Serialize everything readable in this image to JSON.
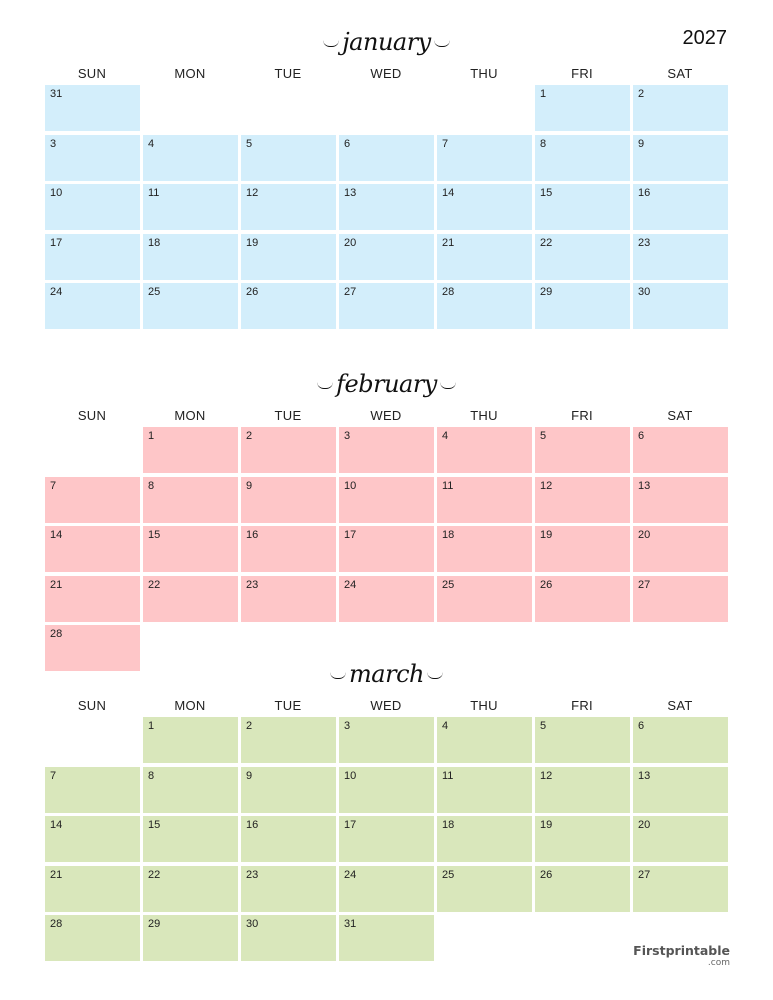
{
  "year": "2027",
  "weekdays": [
    "SUN",
    "MON",
    "TUE",
    "WED",
    "THU",
    "FRI",
    "SAT"
  ],
  "months": [
    {
      "name": "january",
      "color": "#d3eefb",
      "weeks": [
        [
          31,
          null,
          null,
          null,
          null,
          1,
          2
        ],
        [
          3,
          4,
          5,
          6,
          7,
          8,
          9
        ],
        [
          10,
          11,
          12,
          13,
          14,
          15,
          16
        ],
        [
          17,
          18,
          19,
          20,
          21,
          22,
          23
        ],
        [
          24,
          25,
          26,
          27,
          28,
          29,
          30
        ]
      ]
    },
    {
      "name": "february",
      "color": "#fec6c8",
      "weeks": [
        [
          null,
          1,
          2,
          3,
          4,
          5,
          6
        ],
        [
          7,
          8,
          9,
          10,
          11,
          12,
          13
        ],
        [
          14,
          15,
          16,
          17,
          18,
          19,
          20
        ],
        [
          21,
          22,
          23,
          24,
          25,
          26,
          27
        ],
        [
          28,
          null,
          null,
          null,
          null,
          null,
          null
        ]
      ]
    },
    {
      "name": "march",
      "color": "#d9e7bb",
      "weeks": [
        [
          null,
          1,
          2,
          3,
          4,
          5,
          6
        ],
        [
          7,
          8,
          9,
          10,
          11,
          12,
          13
        ],
        [
          14,
          15,
          16,
          17,
          18,
          19,
          20
        ],
        [
          21,
          22,
          23,
          24,
          25,
          26,
          27
        ],
        [
          28,
          29,
          30,
          31,
          null,
          null,
          null
        ]
      ]
    }
  ],
  "logo": {
    "name": "Firstprintable",
    "suffix": ".com"
  }
}
